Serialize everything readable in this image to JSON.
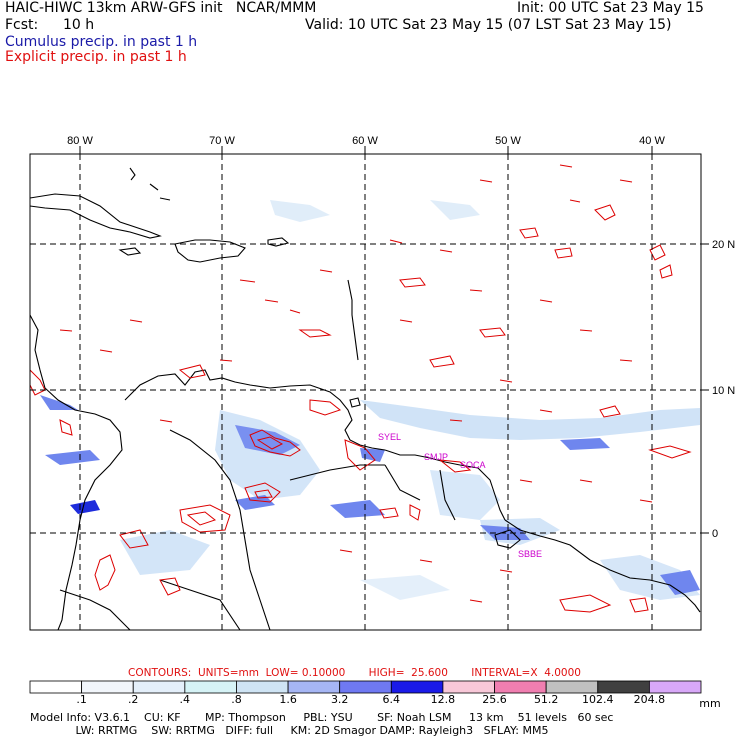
{
  "header": {
    "model": "HAIC-HIWC 13km ARW-GFS init   NCAR/MMM",
    "init": "Init: 00 UTC Sat 23 May 15",
    "fcst_label": "Fcst:",
    "fcst_value": "10 h",
    "valid": "Valid: 10 UTC Sat 23 May 15 (07 LST Sat 23 May 15)",
    "cumulus": "Cumulus precip. in past 1 h",
    "explicit": "Explicit precip. in past 1 h"
  },
  "map": {
    "lon_labels": [
      "80 W",
      "70 W",
      "60 W",
      "50 W",
      "40 W"
    ],
    "lat_labels": [
      "20 N",
      "10 N",
      "0"
    ],
    "stations": [
      "SYEL",
      "SMJP",
      "SOCA",
      "SBBE"
    ],
    "colors": {
      "coast": "#000000",
      "explicit": "#dd0000",
      "cumulus_light": "#c8def6",
      "cumulus_mid": "#6f86ee",
      "cumulus_dark": "#1e2cdc",
      "station": "#cc00cc"
    }
  },
  "contours": {
    "text": "CONTOURS:  UNITS=mm  LOW= 0.10000       HIGH=  25.600       INTERVAL=X  4.0000"
  },
  "legend": {
    "labels": [
      ".1",
      ".2",
      ".4",
      ".8",
      "1.6",
      "3.2",
      "6.4",
      "12.8",
      "25.6",
      "51.2",
      "102.4",
      "204.8"
    ],
    "units": "mm",
    "colors": [
      "#ffffff",
      "#f2f6fb",
      "#e4effa",
      "#d6f3f6",
      "#cfe4f4",
      "#a6b6f4",
      "#6f79f2",
      "#1a1ae8",
      "#f8c8d8",
      "#f07eb0",
      "#c0c0c0",
      "#404040",
      "#d8a8f8"
    ]
  },
  "model_info": {
    "line1": "Model Info: V3.6.1    CU: KF       MP: Thompson     PBL: YSU       SF: Noah LSM     13 km    51 levels   60 sec",
    "line2": "             LW: RRTMG    SW: RRTMG   DIFF: full     KM: 2D Smagor DAMP: Rayleigh3   SFLAY: MM5"
  }
}
